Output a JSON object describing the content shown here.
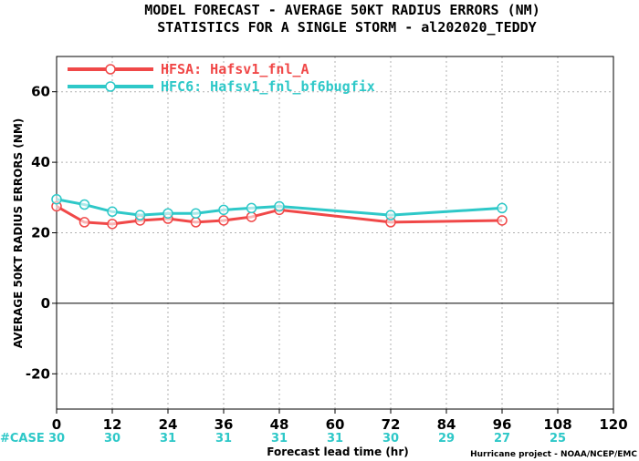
{
  "chart_data": {
    "type": "line",
    "title": "MODEL FORECAST - AVERAGE 50KT RADIUS ERRORS (NM)",
    "subtitle": "STATISTICS FOR A SINGLE STORM - al202020_TEDDY",
    "xlabel": "Forecast lead time (hr)",
    "ylabel": "AVERAGE 50KT RADIUS ERRORS (NM)",
    "xlim": [
      0,
      120
    ],
    "ylim": [
      -30,
      70
    ],
    "x_ticks": [
      "0",
      "12",
      "24",
      "36",
      "48",
      "60",
      "72",
      "84",
      "96",
      "108",
      "120"
    ],
    "y_ticks": [
      "60",
      "40",
      "20",
      "0",
      "-20"
    ],
    "grid": true,
    "legend_position": "top-left",
    "series": [
      {
        "name": "HFSA: Hafsv1_fnl_A",
        "color": "#f04848",
        "x": [
          0,
          6,
          12,
          18,
          24,
          30,
          36,
          42,
          48,
          72,
          96
        ],
        "y": [
          27.5,
          23.0,
          22.5,
          23.5,
          24.0,
          23.0,
          23.5,
          24.5,
          26.5,
          23.0,
          23.5
        ]
      },
      {
        "name": "HFC6: Hafsv1_fnl_bf6bugfix",
        "color": "#2ec8c8",
        "x": [
          0,
          6,
          12,
          18,
          24,
          30,
          36,
          42,
          48,
          72,
          96
        ],
        "y": [
          29.5,
          28.0,
          26.0,
          25.0,
          25.5,
          25.5,
          26.5,
          27.0,
          27.5,
          25.0,
          27.0
        ]
      }
    ],
    "case_label": "#CASE",
    "case_counts": [
      {
        "x": 0,
        "label": "30"
      },
      {
        "x": 12,
        "label": "30"
      },
      {
        "x": 24,
        "label": "31"
      },
      {
        "x": 36,
        "label": "31"
      },
      {
        "x": 48,
        "label": "31"
      },
      {
        "x": 60,
        "label": "31"
      },
      {
        "x": 72,
        "label": "30"
      },
      {
        "x": 84,
        "label": "29"
      },
      {
        "x": 96,
        "label": "27"
      },
      {
        "x": 108,
        "label": "25"
      }
    ],
    "case_color": "#2ec8c8",
    "credit": "Hurricane project - NOAA/NCEP/EMC"
  }
}
